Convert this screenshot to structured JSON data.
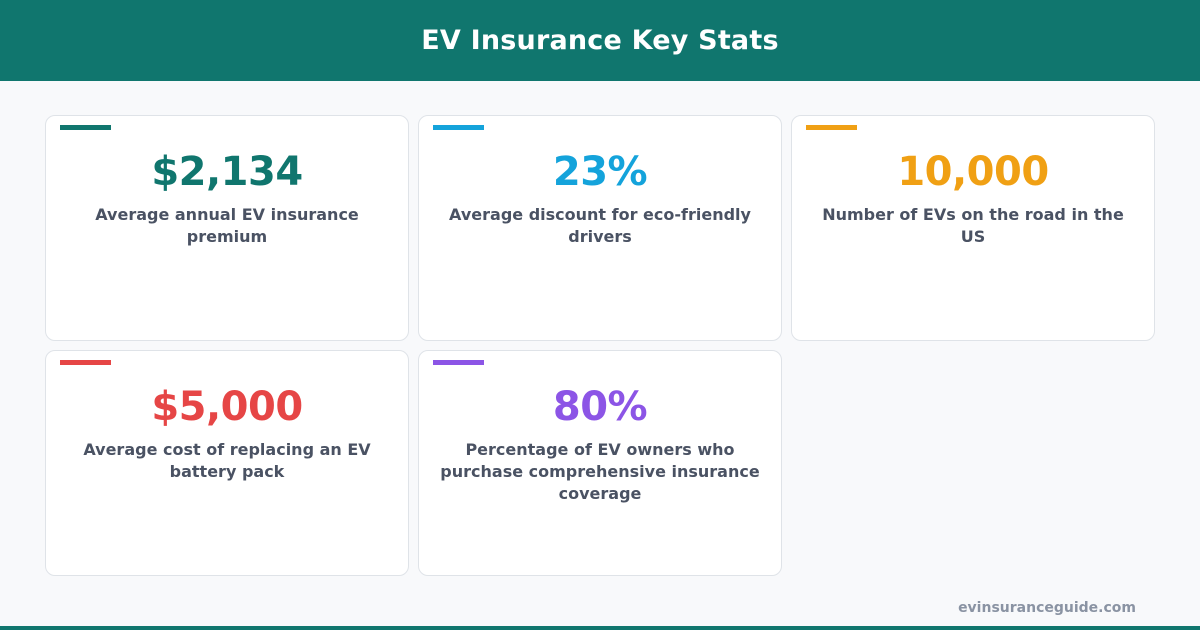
{
  "header": {
    "title": "EV Insurance Key Stats"
  },
  "stats": [
    {
      "value": "$2,134",
      "label": "Average annual EV insurance premium",
      "color": "#10766e"
    },
    {
      "value": "23%",
      "label": "Average discount for eco-friendly drivers",
      "color": "#14a3db"
    },
    {
      "value": "10,000",
      "label": "Number of EVs on the road in the US",
      "color": "#f0a014"
    },
    {
      "value": "$5,000",
      "label": "Average cost of replacing an EV battery pack",
      "color": "#e64646"
    },
    {
      "value": "80%",
      "label": "Percentage of EV owners who purchase comprehensive insurance coverage",
      "color": "#8c55e6"
    }
  ],
  "footer": {
    "site": "evinsuranceguide.com"
  },
  "colors": {
    "brand": "#10766e",
    "label_text": "#4a5263",
    "background": "#f8f9fb"
  }
}
